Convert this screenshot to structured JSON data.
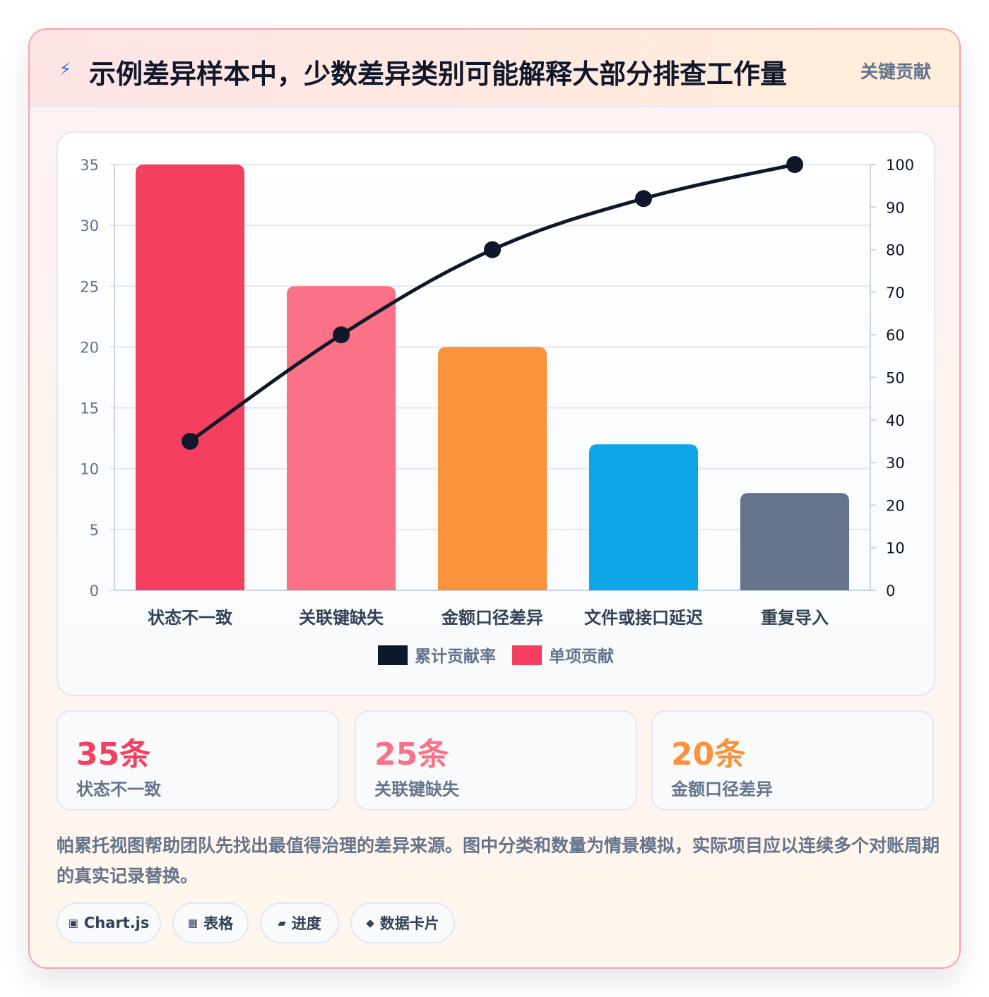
{
  "header": {
    "icon": "lightning-icon",
    "title": "示例差异样本中，少数差异类别可能解释大部分排查工作量",
    "badge": "关键贡献"
  },
  "chart_data": {
    "type": "bar",
    "categories": [
      "状态不一致",
      "关联键缺失",
      "金额口径差异",
      "文件或接口延迟",
      "重复导入"
    ],
    "series": [
      {
        "name": "单项贡献",
        "type": "bar",
        "axis": "left",
        "values": [
          35,
          25,
          20,
          12,
          8
        ],
        "colors": [
          "#f43f5e",
          "#fb7185",
          "#fb923c",
          "#0ea5e9",
          "#64748b"
        ]
      },
      {
        "name": "累计贡献率",
        "type": "line",
        "axis": "right",
        "values": [
          35,
          60,
          80,
          92,
          100
        ],
        "color": "#0f172a"
      }
    ],
    "y_left": {
      "min": 0,
      "max": 35,
      "ticks": [
        0,
        5,
        10,
        15,
        20,
        25,
        30,
        35
      ]
    },
    "y_right": {
      "min": 0,
      "max": 100,
      "ticks": [
        0,
        10,
        20,
        30,
        40,
        50,
        60,
        70,
        80,
        90,
        100
      ]
    },
    "legend": {
      "position": "bottom",
      "items": [
        {
          "label": "累计贡献率",
          "color": "#0f172a"
        },
        {
          "label": "单项贡献",
          "color": "#f43f5e"
        }
      ]
    },
    "grid": true
  },
  "stats": [
    {
      "value": "35条",
      "label": "状态不一致",
      "color": "#f43f5e"
    },
    {
      "value": "25条",
      "label": "关联键缺失",
      "color": "#fb7185"
    },
    {
      "value": "20条",
      "label": "金额口径差异",
      "color": "#fb923c"
    }
  ],
  "note": "帕累托视图帮助团队先找出最值得治理的差异来源。图中分类和数量为情景模拟，实际项目应以连续多个对账周期的真实记录替换。",
  "chips": [
    {
      "icon": "▣",
      "label": "Chart.js"
    },
    {
      "icon": "▦",
      "label": "表格"
    },
    {
      "icon": "▰",
      "label": "进度"
    },
    {
      "icon": "◆",
      "label": "数据卡片"
    }
  ]
}
